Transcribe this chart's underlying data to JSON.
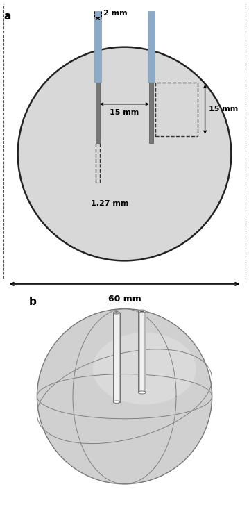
{
  "fig_width": 3.59,
  "fig_height": 7.27,
  "dpi": 100,
  "panel_a_label": "a",
  "panel_b_label": "b",
  "circle_color": "#d8d8d8",
  "circle_edge_color": "#222222",
  "electrode_blue_color": "#8aaac8",
  "electrode_gray_color": "#777777",
  "annotation_2mm": "2 mm",
  "annotation_15mm_h": "15 mm",
  "annotation_15mm_v": "15 mm",
  "annotation_127mm": "1.27 mm",
  "annotation_60mm": "60 mm",
  "background_color": "#ffffff",
  "sphere_face_color": "#d0d0d0",
  "sphere_edge_color": "#777777",
  "dashed_color": "#333333"
}
